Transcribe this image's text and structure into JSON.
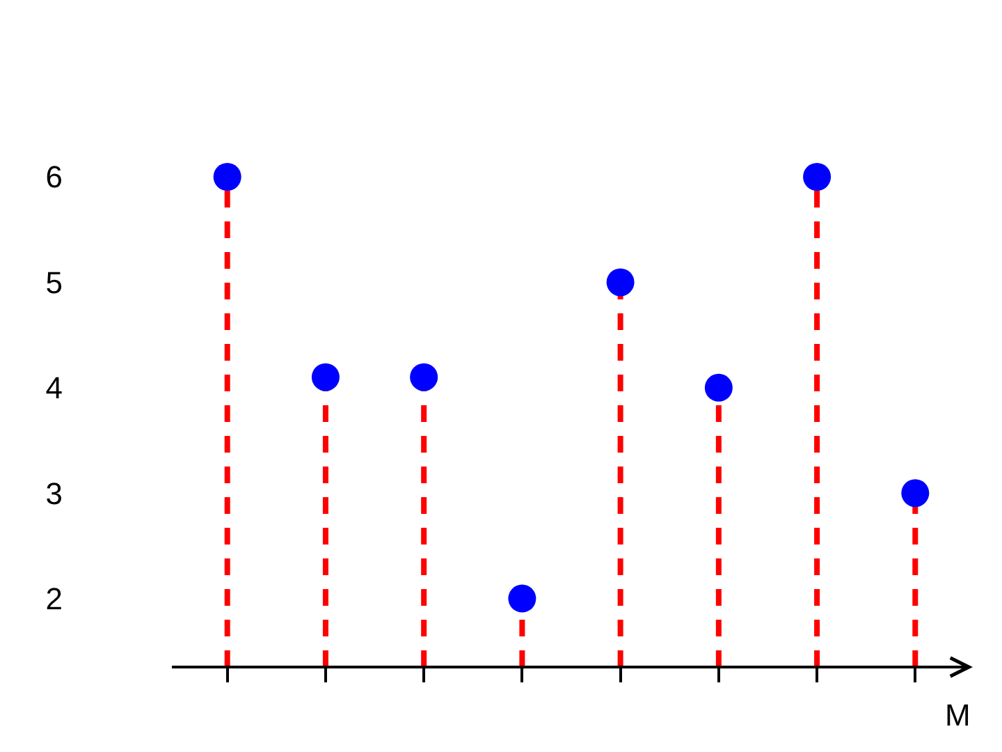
{
  "chart_data": {
    "type": "lollipop",
    "xlabel": "M",
    "categories": [
      null,
      null,
      null,
      null,
      null,
      null,
      null,
      null
    ],
    "values": [
      6,
      4.1,
      4.1,
      2,
      5,
      4,
      6,
      3
    ],
    "color": "#0000ff",
    "ylim": [
      1.35,
      6
    ],
    "yticks": [
      2,
      3,
      4,
      5,
      6
    ],
    "grid": false,
    "marker": "circle",
    "line_style": "dashed",
    "tick_labels": "y"
  }
}
